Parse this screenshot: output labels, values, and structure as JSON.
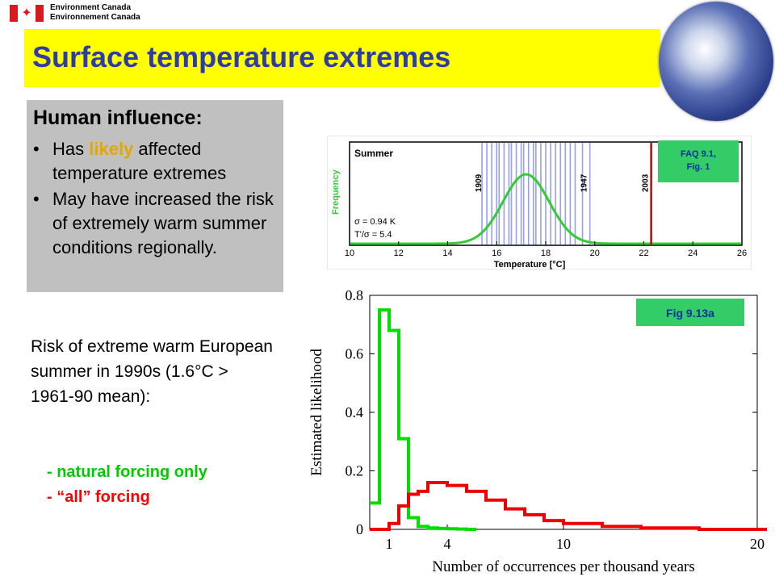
{
  "header": {
    "org_line1": "Environment Canada",
    "org_line2": "Environnement Canada",
    "flag_icon": "maple-leaf-flag",
    "globe_icon": "earth-globe"
  },
  "title": "Surface temperature extremes",
  "human_box": {
    "heading": "Human influence:",
    "bullet1_pre": "Has ",
    "bullet1_highlight": "likely",
    "bullet1_post": " affected temperature extremes",
    "bullet2": "May have increased the risk of extremely warm summer conditions regionally."
  },
  "risk": {
    "text": "Risk of extreme warm European summer in 1990s (1.6°C > 1961-90 mean):",
    "natural": "- natural forcing only",
    "all": "- “all” forcing"
  },
  "colors": {
    "title": "#2e3ca8",
    "band": "#ffff00",
    "natural": "#00cc00",
    "all": "#ff0000",
    "likely": "#e0a800"
  },
  "chart_data": [
    {
      "type": "line",
      "panel_label": "Summer",
      "tag": "FAQ 9.1, Fig. 1",
      "xlabel": "Temperature [°C]",
      "ylabel": "Frequency",
      "xlim": [
        10,
        26
      ],
      "xticks": [
        10,
        12,
        14,
        16,
        18,
        20,
        22,
        24,
        26
      ],
      "stats": [
        "σ = 0.94 K",
        "T'/σ = 5.4"
      ],
      "year_labels": [
        {
          "year": "1909",
          "x": 15.5
        },
        {
          "year": "1947",
          "x": 19.8
        },
        {
          "year": "2003",
          "x": 22.3
        }
      ],
      "observed_years_x": [
        15.4,
        15.6,
        15.8,
        16.0,
        16.1,
        16.3,
        16.5,
        16.6,
        16.8,
        17.0,
        17.1,
        17.3,
        17.5,
        17.6,
        17.8,
        18.0,
        18.2,
        18.4,
        18.6,
        18.8,
        19.0,
        19.2,
        19.5,
        19.8
      ],
      "curve": {
        "mean": 17.2,
        "sigma": 0.94,
        "color": "#33cc33"
      },
      "extreme": {
        "x": 22.3,
        "color": "#cc0000"
      }
    },
    {
      "type": "line",
      "tag": "Fig 9.13a",
      "xlabel": "Number of occurrences per thousand years",
      "ylabel": "Estimated likelihood",
      "xlim": [
        0,
        20
      ],
      "ylim": [
        0,
        0.8
      ],
      "xticks": [
        1,
        4,
        10,
        20
      ],
      "yticks": [
        0,
        0.2,
        0.4,
        0.6,
        0.8
      ],
      "series": [
        {
          "name": "natural forcing only",
          "color": "#00dd00",
          "x": [
            0,
            0.5,
            1,
            1.5,
            2,
            2.5,
            3,
            3.5,
            4,
            4.5,
            5
          ],
          "y": [
            0.09,
            0.75,
            0.68,
            0.31,
            0.04,
            0.01,
            0.005,
            0.003,
            0.002,
            0.001,
            0.0
          ]
        },
        {
          "name": "all forcing",
          "color": "#ee0000",
          "x": [
            0,
            0.5,
            1,
            1.5,
            2,
            2.5,
            3,
            4,
            5,
            6,
            7,
            8,
            9,
            10,
            11,
            12,
            13,
            14,
            15,
            16,
            17,
            18,
            19,
            20
          ],
          "y": [
            0.0,
            0.0,
            0.02,
            0.08,
            0.12,
            0.13,
            0.16,
            0.15,
            0.13,
            0.1,
            0.07,
            0.05,
            0.03,
            0.02,
            0.02,
            0.01,
            0.01,
            0.005,
            0.005,
            0.005,
            0.0,
            0.0,
            0.0,
            0.0
          ]
        }
      ]
    }
  ]
}
